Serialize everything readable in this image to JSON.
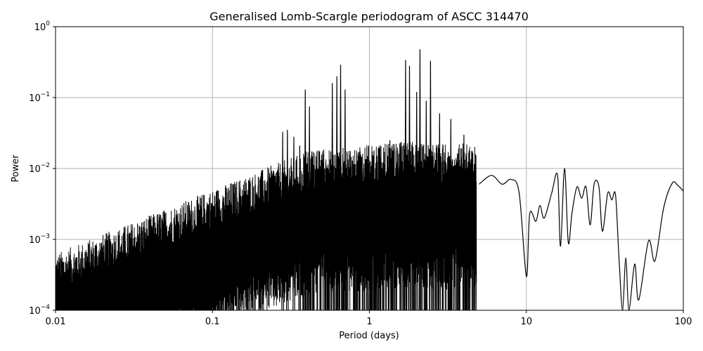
{
  "chart_data": {
    "type": "line",
    "title": "Generalised Lomb-Scargle periodogram of ASCC 314470",
    "xlabel": "Period (days)",
    "ylabel": "Power",
    "xscale": "log",
    "yscale": "log",
    "xlim": [
      0.01,
      100
    ],
    "ylim": [
      0.0001,
      1
    ],
    "grid": true,
    "line_color": "#000000",
    "grid_color": "#b0b0b0",
    "x_ticks": [
      {
        "value": 0.01,
        "label": "0.01"
      },
      {
        "value": 0.1,
        "label": "0.1"
      },
      {
        "value": 1,
        "label": "1"
      },
      {
        "value": 10,
        "label": "10"
      },
      {
        "value": 100,
        "label": "100"
      }
    ],
    "y_ticks": [
      {
        "value": 0.0001,
        "base": "10",
        "exp": "−4"
      },
      {
        "value": 0.001,
        "base": "10",
        "exp": "−3"
      },
      {
        "value": 0.01,
        "base": "10",
        "exp": "−2"
      },
      {
        "value": 0.1,
        "base": "10",
        "exp": "−1"
      },
      {
        "value": 1,
        "base": "10",
        "exp": "0"
      }
    ],
    "series": [
      {
        "peaks": [
          [
            0.28,
            0.033
          ],
          [
            0.3,
            0.035
          ],
          [
            0.33,
            0.028
          ],
          [
            0.36,
            0.021
          ],
          [
            0.39,
            0.13
          ],
          [
            0.415,
            0.075
          ],
          [
            0.58,
            0.16
          ],
          [
            0.62,
            0.2
          ],
          [
            0.655,
            0.29
          ],
          [
            0.7,
            0.13
          ],
          [
            0.97,
            0.015
          ],
          [
            1.1,
            0.012
          ],
          [
            1.35,
            0.025
          ],
          [
            1.7,
            0.34
          ],
          [
            1.8,
            0.28
          ],
          [
            2.0,
            0.12
          ],
          [
            2.1,
            0.48
          ],
          [
            2.3,
            0.09
          ],
          [
            2.45,
            0.33
          ],
          [
            2.8,
            0.06
          ],
          [
            3.3,
            0.05
          ],
          [
            4.0,
            0.03
          ]
        ],
        "tail": [
          [
            5.0,
            0.006
          ],
          [
            6.0,
            0.008
          ],
          [
            7.0,
            0.006
          ],
          [
            8.0,
            0.007
          ],
          [
            9.0,
            0.0045
          ],
          [
            10.0,
            0.0003
          ],
          [
            10.5,
            0.0023
          ],
          [
            11.5,
            0.0018
          ],
          [
            12.2,
            0.003
          ],
          [
            13.0,
            0.002
          ],
          [
            14.5,
            0.0045
          ],
          [
            15.8,
            0.008
          ],
          [
            16.5,
            0.0008
          ],
          [
            17.5,
            0.01
          ],
          [
            18.5,
            0.0009
          ],
          [
            19.5,
            0.0023
          ],
          [
            21.0,
            0.0055
          ],
          [
            22.5,
            0.0038
          ],
          [
            24.0,
            0.0055
          ],
          [
            25.5,
            0.0016
          ],
          [
            27.0,
            0.006
          ],
          [
            29.0,
            0.0055
          ],
          [
            30.5,
            0.0013
          ],
          [
            33.0,
            0.0045
          ],
          [
            35.0,
            0.0036
          ],
          [
            37.0,
            0.0042
          ],
          [
            39.0,
            0.0005
          ],
          [
            41.0,
            0.0001
          ],
          [
            43.0,
            0.00055
          ],
          [
            45.0,
            0.0001
          ],
          [
            49.0,
            0.00045
          ],
          [
            52.0,
            0.00014
          ],
          [
            60.0,
            0.00095
          ],
          [
            66.0,
            0.0005
          ],
          [
            75.0,
            0.0028
          ],
          [
            85.0,
            0.0062
          ],
          [
            92.0,
            0.0058
          ],
          [
            100.0,
            0.0048
          ]
        ]
      }
    ]
  }
}
